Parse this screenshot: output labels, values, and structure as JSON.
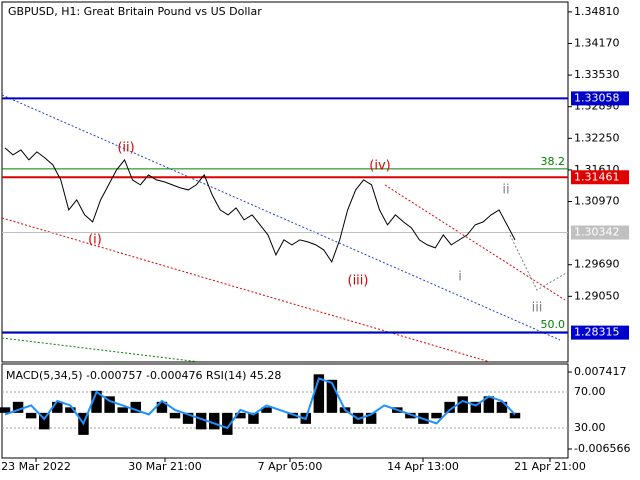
{
  "chart_data": [
    {
      "type": "line",
      "title": "GBPUSD, H1:  Great Britain Pound vs US Dollar",
      "color": "#000000",
      "values": [
        1.32056,
        1.31914,
        1.32015,
        1.31813,
        1.31975,
        1.31853,
        1.31712,
        1.31408,
        1.308,
        1.31003,
        1.30699,
        1.30557,
        1.31003,
        1.31307,
        1.3161,
        1.31813,
        1.31408,
        1.31307,
        1.31509,
        1.31408,
        1.31367,
        1.31307,
        1.31246,
        1.31205,
        1.31307,
        1.31509,
        1.31104,
        1.308,
        1.30699,
        1.30841,
        1.30598,
        1.30699,
        1.30497,
        1.30294,
        1.29889,
        1.30193,
        1.30092,
        1.30193,
        1.30152,
        1.30092,
        1.2999,
        1.29747,
        1.30193,
        1.308,
        1.31205,
        1.31408,
        1.31307,
        1.308,
        1.30497,
        1.30699,
        1.30557,
        1.30436,
        1.30193,
        1.30092,
        1.30031,
        1.30294,
        1.30092,
        1.30193,
        1.30294,
        1.30497,
        1.30557,
        1.30699,
        1.308,
        1.30497,
        1.30193
      ],
      "ylim": [
        1.2772,
        1.3501
      ],
      "yticks": [
        {
          "value": 1.3481,
          "label": "1.34810"
        },
        {
          "value": 1.3417,
          "label": "1.34170"
        },
        {
          "value": 1.3353,
          "label": "1.33530"
        },
        {
          "value": 1.3289,
          "label": "1.32890"
        },
        {
          "value": 1.3225,
          "label": "1.32250"
        },
        {
          "value": 1.3161,
          "label": "1.31610"
        },
        {
          "value": 1.3097,
          "label": "1.30970"
        },
        {
          "value": 1.2969,
          "label": "1.29690"
        },
        {
          "value": 1.2905,
          "label": "1.29050"
        }
      ],
      "xtick_labels": [
        "23 Mar 2022",
        "30 Mar 21:00",
        "7 Apr 05:00",
        "14 Apr 13:00",
        "21 Apr 21:00"
      ],
      "levels": [
        {
          "value": 1.33058,
          "color": "#0000cc"
        },
        {
          "value": 1.31461,
          "color": "#e00000"
        },
        {
          "value": 1.30342,
          "color": "#c0c0c0"
        },
        {
          "value": 1.28315,
          "color": "#0000cc"
        }
      ],
      "fib_levels": [
        {
          "label": "38.2",
          "value": 1.31631
        },
        {
          "label": "50.0",
          "value": 1.2833
        }
      ],
      "wave_labels": [
        {
          "text": "(i)",
          "color": "#e00000"
        },
        {
          "text": "(ii)",
          "color": "#e00000"
        },
        {
          "text": "(iii)",
          "color": "#e00000"
        },
        {
          "text": "(iv)",
          "color": "#e00000"
        },
        {
          "text": "i",
          "color": "#808080"
        },
        {
          "text": "ii",
          "color": "#808080"
        },
        {
          "text": "iii",
          "color": "#808080"
        }
      ]
    },
    {
      "type": "line",
      "title": "MACD(5,34,5) -0.000757 -0.000476 RSI(14) 45.28",
      "ylim": [
        -0.0082,
        0.00887
      ],
      "yticks": [
        0.007417,
        -0.006566
      ],
      "y2lim": [
        -3.3,
        101
      ],
      "y2ticks": [
        {
          "value": 70,
          "label": "70.00"
        },
        {
          "value": 30,
          "label": "30.00"
        }
      ],
      "series": [
        {
          "type": "bar",
          "color": "#000000",
          "values": [
            0.001,
            0.002,
            -0.001,
            -0.003,
            0.002,
            0.001,
            -0.004,
            0.004,
            0.003,
            0.001,
            0.002,
            0,
            0.002,
            -0.001,
            -0.002,
            -0.003,
            -0.003,
            -0.004,
            -0.001,
            -0.002,
            0.001,
            0,
            -0.001,
            -0.002,
            0.007,
            0.006,
            0.001,
            -0.002,
            -0.002,
            0,
            0.001,
            -0.001,
            -0.002,
            -0.001,
            0.002,
            0.003,
            0.002,
            0.003,
            0.002,
            -0.001
          ]
        },
        {
          "type": "line",
          "color": "#1e90ff",
          "axis": "y2",
          "values": [
            45,
            50,
            55,
            40,
            60,
            55,
            35,
            70,
            60,
            55,
            50,
            45,
            60,
            50,
            45,
            40,
            35,
            30,
            50,
            45,
            55,
            50,
            45,
            40,
            85,
            80,
            50,
            40,
            45,
            55,
            50,
            45,
            40,
            35,
            50,
            60,
            55,
            65,
            60,
            45
          ]
        }
      ]
    }
  ]
}
